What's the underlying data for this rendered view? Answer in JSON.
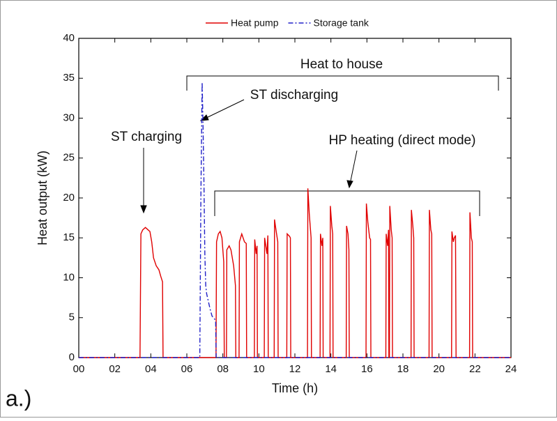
{
  "chart_data": {
    "type": "line",
    "xlabel": "Time (h)",
    "ylabel": "Heat output (kW)",
    "panel_label": "a.)",
    "annotations": [
      "Heat to house",
      "ST discharging",
      "ST charging",
      "HP heating (direct mode)"
    ],
    "xlim": [
      0,
      24
    ],
    "xticks": [
      {
        "value": 0,
        "label": "00"
      },
      {
        "value": 2,
        "label": "02"
      },
      {
        "value": 4,
        "label": "04"
      },
      {
        "value": 6,
        "label": "06"
      },
      {
        "value": 8,
        "label": "08"
      },
      10,
      12,
      14,
      16,
      18,
      20,
      22,
      24
    ],
    "ylim": [
      0,
      40
    ],
    "yticks": [
      0,
      5,
      10,
      15,
      20,
      25,
      30,
      35,
      40
    ],
    "legend": "top",
    "series": [
      {
        "name": "Heat pump",
        "color": "#e00000",
        "dash": "solid",
        "x": [
          0,
          3.4,
          3.45,
          3.55,
          3.7,
          3.85,
          3.95,
          4.05,
          4.15,
          4.3,
          4.45,
          4.55,
          4.65,
          4.68,
          7.62,
          7.65,
          7.75,
          7.85,
          7.95,
          8.05,
          8.08,
          8.2,
          8.22,
          8.35,
          8.45,
          8.6,
          8.7,
          8.72,
          8.9,
          8.92,
          9.05,
          9.2,
          9.3,
          9.32,
          9.75,
          9.77,
          9.85,
          9.9,
          9.92,
          10.3,
          10.32,
          10.45,
          10.5,
          10.52,
          10.85,
          10.87,
          10.95,
          11.05,
          11.07,
          11.55,
          11.57,
          11.7,
          11.75,
          11.77,
          12.7,
          12.72,
          12.8,
          12.9,
          12.92,
          13.4,
          13.42,
          13.5,
          13.55,
          13.57,
          13.95,
          13.97,
          14.05,
          14.1,
          14.12,
          14.85,
          14.87,
          14.95,
          15.0,
          15.02,
          15.95,
          15.97,
          16.05,
          16.15,
          16.2,
          16.22,
          17.05,
          17.07,
          17.15,
          17.2,
          17.22,
          17.25,
          17.27,
          17.35,
          17.4,
          17.42,
          18.45,
          18.47,
          18.55,
          18.6,
          18.62,
          19.45,
          19.47,
          19.55,
          19.6,
          19.62,
          20.7,
          20.72,
          20.8,
          20.85,
          20.92,
          20.95,
          21.7,
          21.72,
          21.8,
          21.85,
          21.87,
          24
        ],
        "values": [
          0,
          0,
          15.5,
          16.0,
          16.3,
          16.0,
          15.8,
          14.5,
          12.5,
          11.5,
          11.0,
          10.2,
          9.5,
          0,
          0,
          14.5,
          15.5,
          15.8,
          15.0,
          12.0,
          0,
          0,
          13.5,
          14.0,
          13.5,
          11.5,
          9.0,
          0,
          0,
          14.5,
          15.5,
          14.5,
          14.3,
          0,
          0,
          14.8,
          13.0,
          14.0,
          0,
          0,
          15.0,
          13.0,
          15.3,
          0,
          0,
          17.3,
          16.0,
          14.5,
          0,
          0,
          15.5,
          15.2,
          15.0,
          0,
          0,
          21.2,
          18.0,
          15.0,
          0,
          0,
          15.5,
          14.0,
          15.0,
          0,
          0,
          19.0,
          16.5,
          15.5,
          0,
          0,
          16.5,
          15.5,
          13.5,
          0,
          0,
          19.3,
          17.0,
          15.0,
          14.8,
          0,
          0,
          15.5,
          14.0,
          16.0,
          0,
          0,
          19.0,
          16.0,
          15.0,
          0,
          0,
          18.5,
          16.5,
          15.0,
          0,
          0,
          18.5,
          16.0,
          15.5,
          0,
          0,
          15.8,
          14.5,
          15.0,
          15.3,
          0,
          0,
          18.2,
          15.0,
          14.5,
          0,
          0
        ]
      },
      {
        "name": "Storage tank",
        "color": "#2020c8",
        "dash": "dashdot",
        "x": [
          0,
          6.72,
          6.78,
          6.85,
          6.9,
          6.95,
          7.0,
          7.05,
          7.1,
          7.2,
          7.3,
          7.4,
          7.55,
          7.6,
          7.63,
          24
        ],
        "values": [
          0,
          0,
          20,
          34.5,
          29,
          22,
          13,
          9,
          8,
          7,
          6,
          5.2,
          4.8,
          4.5,
          0,
          0
        ]
      }
    ]
  }
}
